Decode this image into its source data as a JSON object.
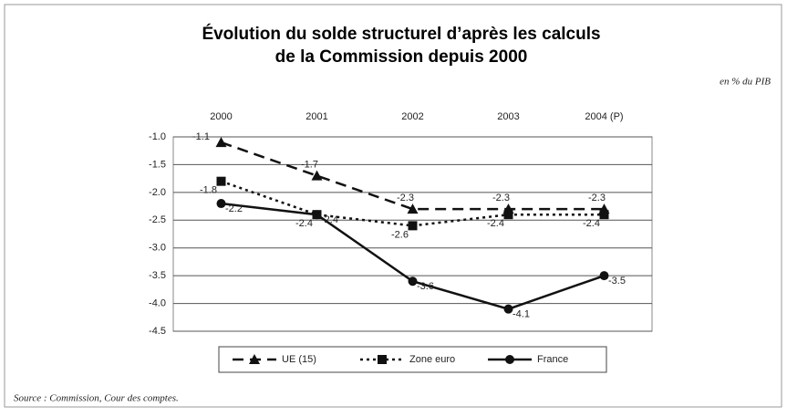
{
  "chart_data": {
    "type": "line",
    "title": [
      "Évolution du solde structurel d’après les calculs",
      "de la Commission depuis 2000"
    ],
    "unit_label": "en % du PIB",
    "source": "Source : Commission, Cour des comptes.",
    "categories": [
      "2000",
      "2001",
      "2002",
      "2003",
      "2004 (P)"
    ],
    "series": [
      {
        "name": "UE (15)",
        "color": "#111111",
        "dash": "12 7",
        "marker": "triangle",
        "values": [
          -1.1,
          -1.7,
          -2.3,
          -2.3,
          -2.3
        ]
      },
      {
        "name": "Zone euro",
        "color": "#111111",
        "dash": "3 4",
        "marker": "square",
        "values": [
          -1.8,
          -2.4,
          -2.6,
          -2.4,
          -2.4
        ]
      },
      {
        "name": "France",
        "color": "#111111",
        "dash": "none",
        "marker": "circle",
        "values": [
          -2.2,
          -2.4,
          -3.6,
          -4.1,
          -3.5
        ]
      }
    ],
    "ylim": [
      -4.5,
      -1.0
    ],
    "yticks": [
      {
        "value": -1.0,
        "label": "-1.0"
      },
      -1.5,
      {
        "value": -2.0,
        "label": "-2.0"
      },
      -2.5,
      {
        "value": -3.0,
        "label": "-3.0"
      },
      -3.5,
      {
        "value": -4.0,
        "label": "-4.0"
      },
      -4.5
    ],
    "grid": true,
    "legend": "bottom"
  }
}
